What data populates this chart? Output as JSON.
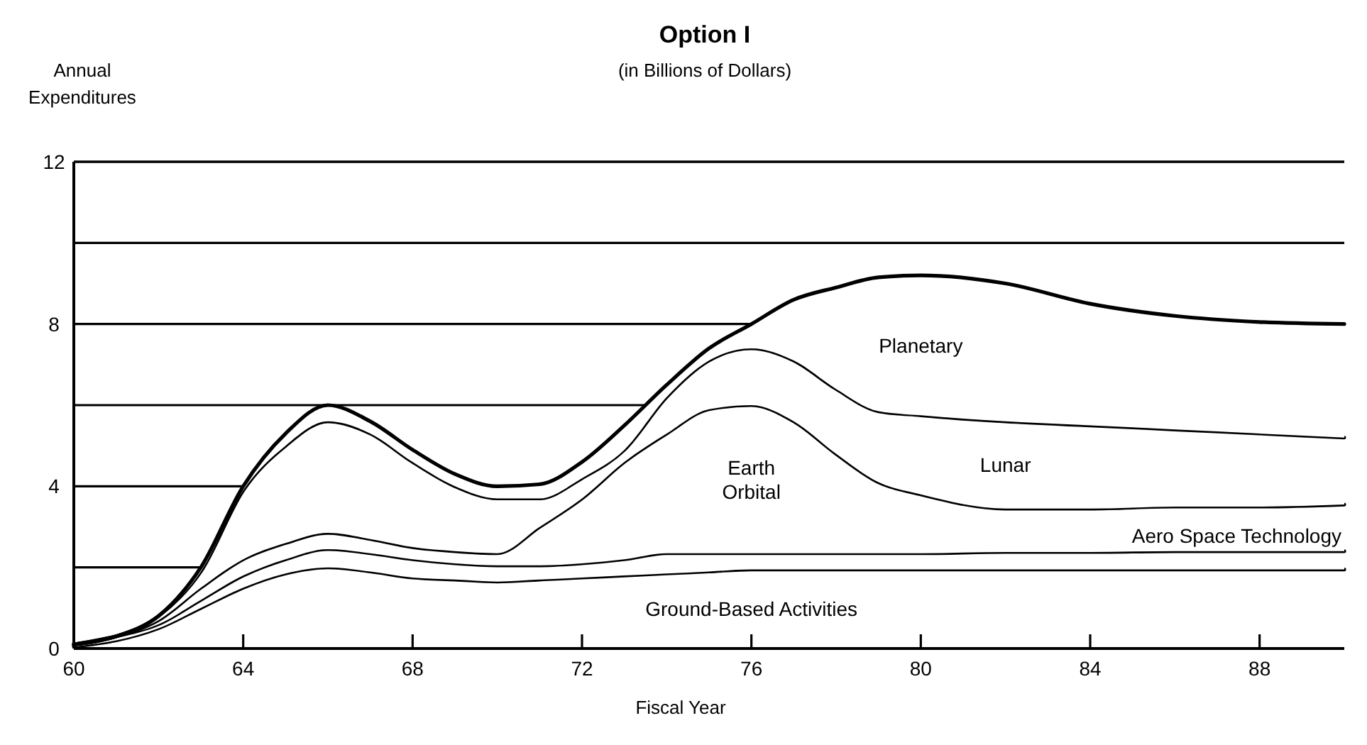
{
  "chart_data": {
    "type": "area",
    "stacked": true,
    "title": "Option I",
    "subtitle": "(in Billions of Dollars)",
    "ylabel": "Annual Expenditures",
    "xlabel": "Fiscal Year",
    "x": [
      60,
      61,
      62,
      63,
      64,
      65,
      66,
      67,
      68,
      69,
      70,
      71,
      72,
      73,
      74,
      75,
      76,
      77,
      78,
      79,
      80,
      82,
      84,
      86,
      88,
      90
    ],
    "xlim": [
      60,
      90
    ],
    "xticks": [
      60,
      64,
      68,
      72,
      76,
      80,
      84,
      88
    ],
    "ylim": [
      0,
      12
    ],
    "yticks": [
      0,
      {
        "value": 2,
        "label": null
      },
      4,
      {
        "value": 6,
        "label": null
      },
      8,
      {
        "value": 10,
        "label": null
      },
      12
    ],
    "grid": "y",
    "series": [
      {
        "name": "Ground-Based Activities",
        "color": "#000000",
        "values": [
          0.05,
          0.2,
          0.5,
          1.0,
          1.5,
          1.85,
          2.0,
          1.9,
          1.75,
          1.7,
          1.65,
          1.7,
          1.75,
          1.8,
          1.85,
          1.9,
          1.95,
          1.95,
          1.95,
          1.95,
          1.95,
          1.95,
          1.95,
          1.95,
          1.95,
          1.95
        ]
      },
      {
        "name": "Aero Space Technology",
        "color": "#000000",
        "values": [
          0.05,
          0.1,
          0.1,
          0.2,
          0.3,
          0.35,
          0.45,
          0.45,
          0.45,
          0.4,
          0.4,
          0.35,
          0.35,
          0.4,
          0.5,
          0.45,
          0.4,
          0.4,
          0.4,
          0.4,
          0.4,
          0.43,
          0.43,
          0.45,
          0.45,
          0.45
        ]
      },
      {
        "name": "Earth Orbital",
        "color": "#000000",
        "values": [
          0,
          0,
          0.1,
          0.3,
          0.4,
          0.4,
          0.4,
          0.35,
          0.3,
          0.3,
          0.3,
          0.95,
          1.6,
          2.4,
          2.95,
          3.55,
          3.65,
          3.25,
          2.45,
          1.75,
          1.45,
          1.07,
          1.07,
          1.1,
          1.1,
          1.15
        ]
      },
      {
        "name": "Lunar",
        "color": "#000000",
        "values": [
          0,
          0,
          0.1,
          0.4,
          1.7,
          2.4,
          2.75,
          2.6,
          2.1,
          1.6,
          1.35,
          0.7,
          0.5,
          0.3,
          0.9,
          1.2,
          1.4,
          1.5,
          1.6,
          1.75,
          1.95,
          2.15,
          2.05,
          1.9,
          1.8,
          1.65
        ]
      },
      {
        "name": "Planetary",
        "color": "#000000",
        "values": [
          0,
          0,
          0,
          0.1,
          0.1,
          0.3,
          0.4,
          0.3,
          0.3,
          0.3,
          0.3,
          0.35,
          0.4,
          0.6,
          0.3,
          0.3,
          0.6,
          1.5,
          2.5,
          3.3,
          3.45,
          3.4,
          3.0,
          2.8,
          2.75,
          2.8
        ]
      }
    ]
  }
}
